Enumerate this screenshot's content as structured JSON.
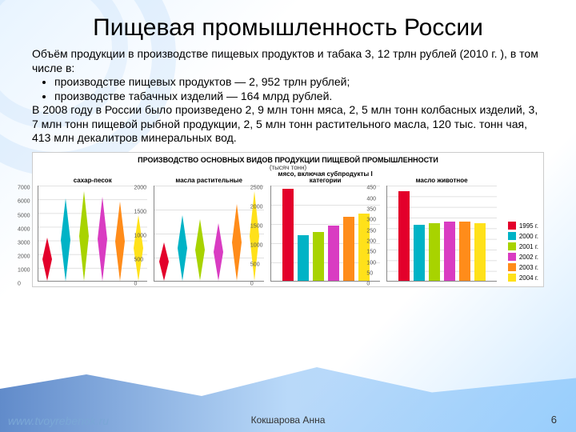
{
  "title": "Пищевая промышленность России",
  "para1": "Объём продукции в производстве пищевых продуктов и табака 3, 12 трлн рублей (2010 г. ), в том числе в:",
  "bullets": [
    "производстве пищевых продуктов — 2, 952 трлн рублей;",
    "производстве табачных изделий — 164 млрд рублей."
  ],
  "para2": "В 2008 году в России было произведено 2, 9 млн тонн мяса, 2, 5 млн тонн колбасных изделий, 3, 7 млн тонн пищевой рыбной продукции, 2, 5 млн тонн растительного масла, 120 тыс. тонн чая, 413 млн декалитров минеральных вод.",
  "chart": {
    "main_title": "ПРОИЗВОДСТВО ОСНОВНЫХ ВИДОВ ПРОДУКЦИИ ПИЩЕВОЙ ПРОМЫШЛЕННОСТИ",
    "subtitle": "(тысяч тонн)",
    "legend": [
      {
        "label": "1995 г.",
        "color": "#e3002b"
      },
      {
        "label": "2000 г.",
        "color": "#00b3c6"
      },
      {
        "label": "2001 г.",
        "color": "#a8d300"
      },
      {
        "label": "2002 г.",
        "color": "#d93cc2"
      },
      {
        "label": "2003 г.",
        "color": "#ff8c1a"
      },
      {
        "label": "2004 г.",
        "color": "#ffe11a"
      }
    ],
    "panels": [
      {
        "title": "сахар-песок",
        "type": "diamond",
        "ymax": 7000,
        "ytick_step": 1000,
        "values": [
          3150,
          6050,
          6550,
          6150,
          5800,
          4800
        ]
      },
      {
        "title": "масла растительные",
        "type": "diamond",
        "ymax": 2000,
        "ytick_step": 500,
        "values": [
          800,
          1370,
          1280,
          1200,
          1600,
          1870
        ]
      },
      {
        "title": "мясо, включая субпродукты I категории",
        "type": "bar",
        "ymax": 2500,
        "ytick_step": 500,
        "values": [
          2400,
          1190,
          1280,
          1450,
          1680,
          1750
        ]
      },
      {
        "title": "масло животное",
        "type": "bar",
        "ymax": 450,
        "ytick_step": 50,
        "values": [
          420,
          265,
          270,
          280,
          280,
          270
        ]
      }
    ]
  },
  "footer": {
    "author": "Кокшарова Анна",
    "page": "6",
    "url": "www.tvoyrebenok.ru"
  },
  "style": {
    "title_fontsize": 30,
    "body_fontsize": 14,
    "grid_color": "#cccccc",
    "bg": "#ffffff"
  }
}
